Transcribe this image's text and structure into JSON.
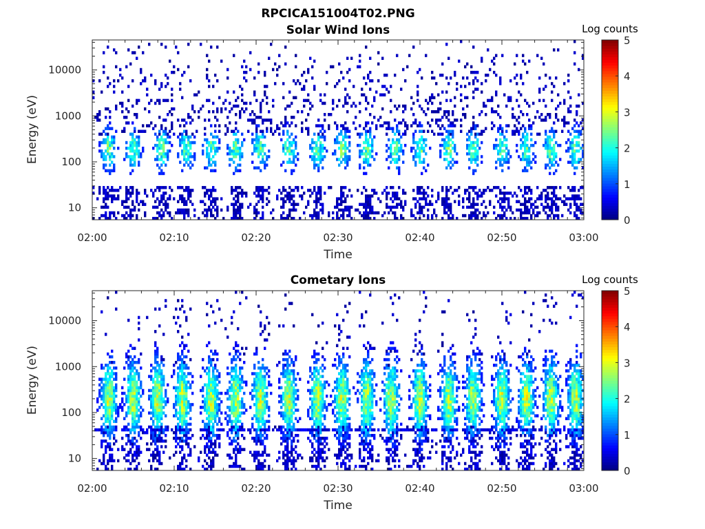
{
  "figure_title": "RPCICA151004T02.PNG",
  "chart_data": [
    {
      "type": "heatmap",
      "title": "Solar Wind Ions",
      "xlabel": "Time",
      "ylabel": "Energy (eV)",
      "x_range": [
        "02:00",
        "03:00"
      ],
      "x_tick_labels": [
        "02:00",
        "02:10",
        "02:20",
        "02:30",
        "02:40",
        "02:50",
        "03:00"
      ],
      "y_scale": "log",
      "y_range": [
        5.5,
        45000
      ],
      "y_tick_labels": [
        "10",
        "100",
        "1000",
        "10000"
      ],
      "colorbar": {
        "label": "Log counts",
        "range": [
          0,
          5
        ],
        "tick_labels": [
          "0",
          "1",
          "2",
          "3",
          "4",
          "5"
        ],
        "colormap": "jet"
      },
      "dominant_energy_band_eV": [
        90,
        400
      ],
      "peak_log_counts": 2.5,
      "burst_times_min": [
        2,
        5,
        8.5,
        11.5,
        14.5,
        17.5,
        20.5,
        24,
        27.5,
        30.5,
        33.5,
        37,
        40,
        43.5,
        46.5,
        50,
        53,
        56,
        59
      ],
      "background_level_log_counts": 0.3
    },
    {
      "type": "heatmap",
      "title": "Cometary Ions",
      "xlabel": "Time",
      "ylabel": "Energy (eV)",
      "x_range": [
        "02:00",
        "03:00"
      ],
      "x_tick_labels": [
        "02:00",
        "02:10",
        "02:20",
        "02:30",
        "02:40",
        "02:50",
        "03:00"
      ],
      "y_scale": "log",
      "y_range": [
        5.5,
        45000
      ],
      "y_tick_labels": [
        "10",
        "100",
        "1000",
        "10000"
      ],
      "colorbar": {
        "label": "Log counts",
        "range": [
          0,
          5
        ],
        "tick_labels": [
          "0",
          "1",
          "2",
          "3",
          "4",
          "5"
        ],
        "colormap": "jet"
      },
      "dominant_energy_band_eV": [
        50,
        800
      ],
      "peak_log_counts": 3.0,
      "burst_times_min": [
        2,
        5,
        8,
        11,
        14.5,
        17.5,
        20.5,
        24,
        27.5,
        30.5,
        33.5,
        36.5,
        40,
        43.5,
        46.5,
        50,
        53,
        56,
        59
      ],
      "background_level_log_counts": 0.2
    }
  ]
}
